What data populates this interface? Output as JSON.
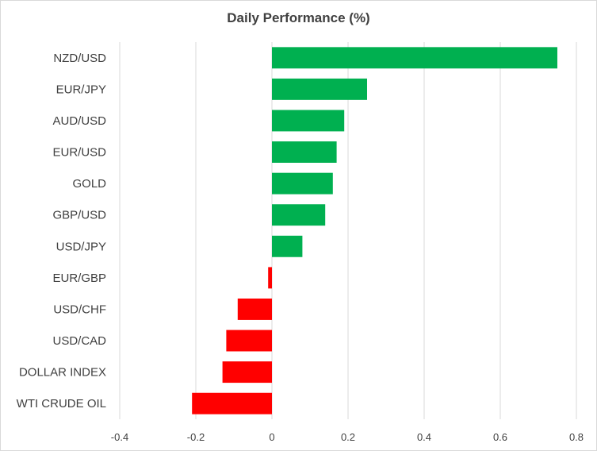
{
  "chart_data": {
    "type": "bar",
    "orientation": "horizontal",
    "title": "Daily Performance  (%)",
    "xlabel": "",
    "ylabel": "",
    "categories": [
      "NZD/USD",
      "EUR/JPY",
      "AUD/USD",
      "EUR/USD",
      "GOLD",
      "GBP/USD",
      "USD/JPY",
      "EUR/GBP",
      "USD/CHF",
      "USD/CAD",
      "DOLLAR INDEX",
      "WTI CRUDE OIL"
    ],
    "values": [
      0.75,
      0.25,
      0.19,
      0.17,
      0.16,
      0.14,
      0.08,
      -0.01,
      -0.09,
      -0.12,
      -0.13,
      -0.21
    ],
    "xlim": [
      -0.4,
      0.8
    ],
    "xticks": [
      -0.4,
      -0.2,
      0,
      0.2,
      0.4,
      0.6,
      0.8
    ],
    "xtick_labels": [
      "-0.4",
      "-0.2",
      "0",
      "0.2",
      "0.4",
      "0.6",
      "0.8"
    ],
    "grid": "vertical",
    "legend": "none",
    "colors": {
      "positive": "#00b050",
      "negative": "#ff0000",
      "grid": "#d9d9d9",
      "text": "#404040"
    }
  }
}
